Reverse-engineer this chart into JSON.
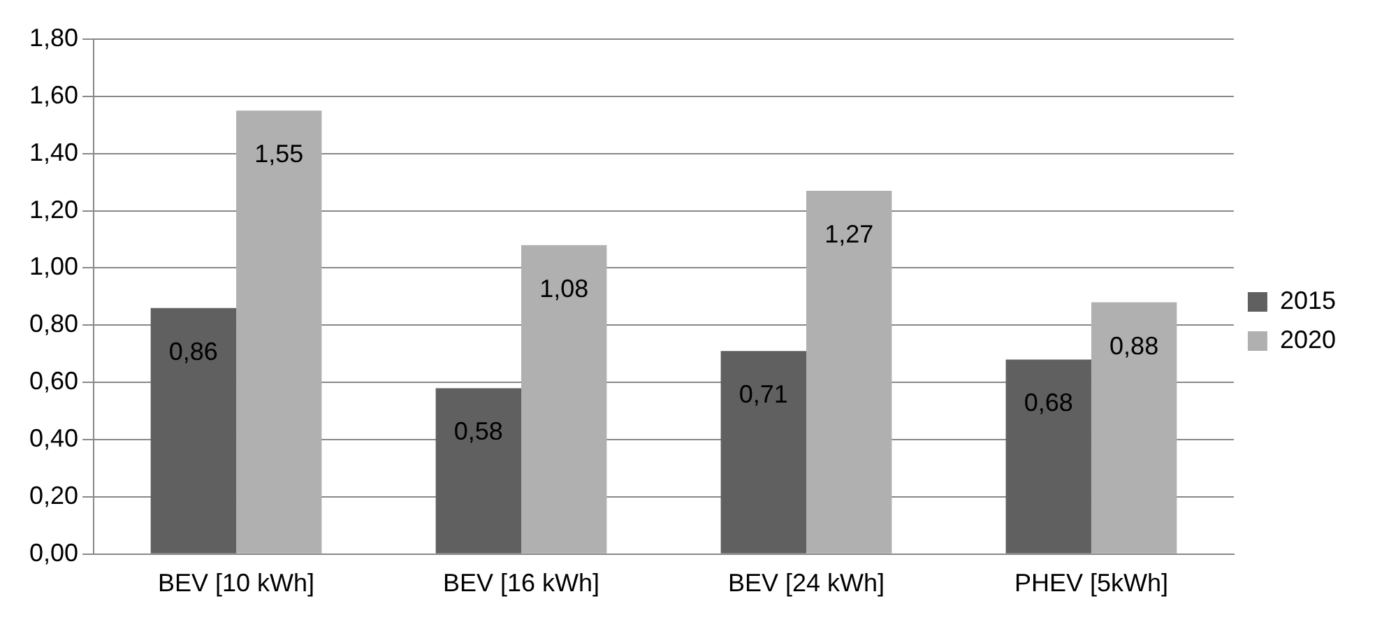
{
  "chart_data": {
    "type": "bar",
    "categories": [
      "BEV [10 kWh]",
      "BEV [16 kWh]",
      "BEV [24 kWh]",
      "PHEV [5kWh]"
    ],
    "series": [
      {
        "name": "2015",
        "color": "#606060",
        "values": [
          0.86,
          0.58,
          0.71,
          0.68
        ],
        "value_labels": [
          "0,86",
          "0,58",
          "0,71",
          "0,68"
        ]
      },
      {
        "name": "2020",
        "color": "#b0b0b0",
        "values": [
          1.55,
          1.08,
          1.27,
          0.88
        ],
        "value_labels": [
          "1,55",
          "1,08",
          "1,27",
          "0,88"
        ]
      }
    ],
    "ylim": [
      0,
      1.8
    ],
    "yticks": [
      {
        "value": 0,
        "label": "0,00"
      },
      {
        "value": 0.2,
        "label": "0,20"
      },
      {
        "value": 0.4,
        "label": "0,40"
      },
      {
        "value": 0.6,
        "label": "0,60"
      },
      {
        "value": 0.8,
        "label": "0,80"
      },
      {
        "value": 1,
        "label": "1,00"
      },
      {
        "value": 1.2,
        "label": "1,20"
      },
      {
        "value": 1.4,
        "label": "1,40"
      },
      {
        "value": 1.6,
        "label": "1,60"
      },
      {
        "value": 1.8,
        "label": "1,80"
      }
    ],
    "grid": "y",
    "legend": "right"
  }
}
